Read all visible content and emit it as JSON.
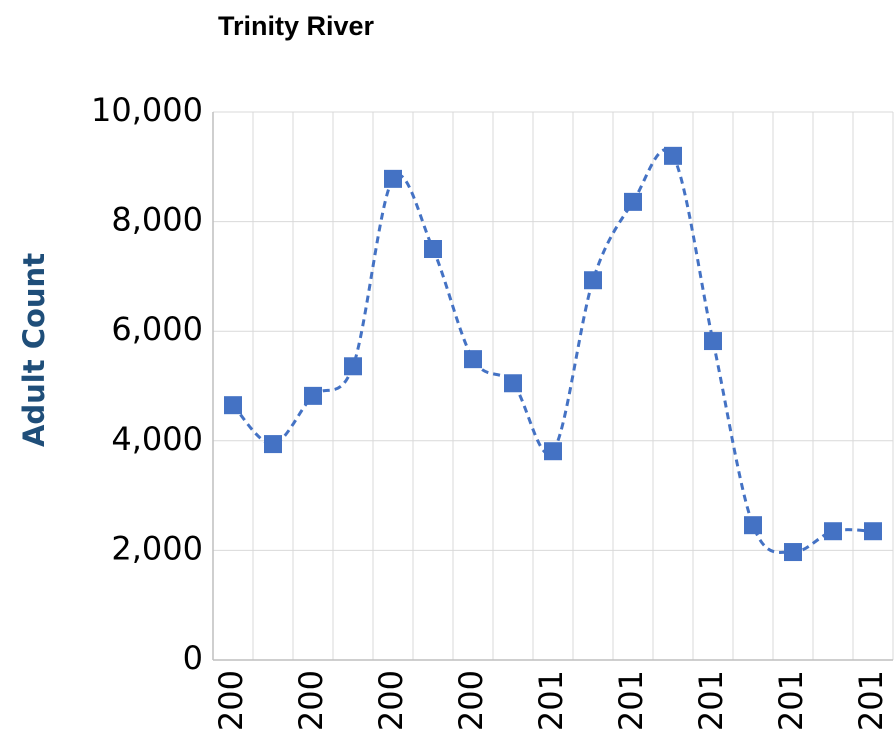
{
  "chart_data": {
    "type": "line",
    "title": "Trinity River",
    "y_label": "Adult Count",
    "categories": [
      "200",
      null,
      "200",
      null,
      "200",
      null,
      "200",
      null,
      "201",
      null,
      "201",
      null,
      "201",
      null,
      "201",
      null,
      "201"
    ],
    "values": [
      4650,
      3940,
      4820,
      5360,
      8780,
      7500,
      5490,
      5050,
      3810,
      6930,
      8360,
      9200,
      5820,
      2460,
      1970,
      2350,
      2350
    ],
    "color": "#4472c4",
    "ylim": [
      0,
      10000
    ],
    "yticks": [
      0,
      {
        "value": 2000,
        "label": "2,000"
      },
      {
        "value": 4000,
        "label": "4,000"
      },
      {
        "value": 6000,
        "label": "6,000"
      },
      {
        "value": 8000,
        "label": "8,000"
      },
      {
        "value": 10000,
        "label": "10,000"
      }
    ],
    "grid": true
  }
}
